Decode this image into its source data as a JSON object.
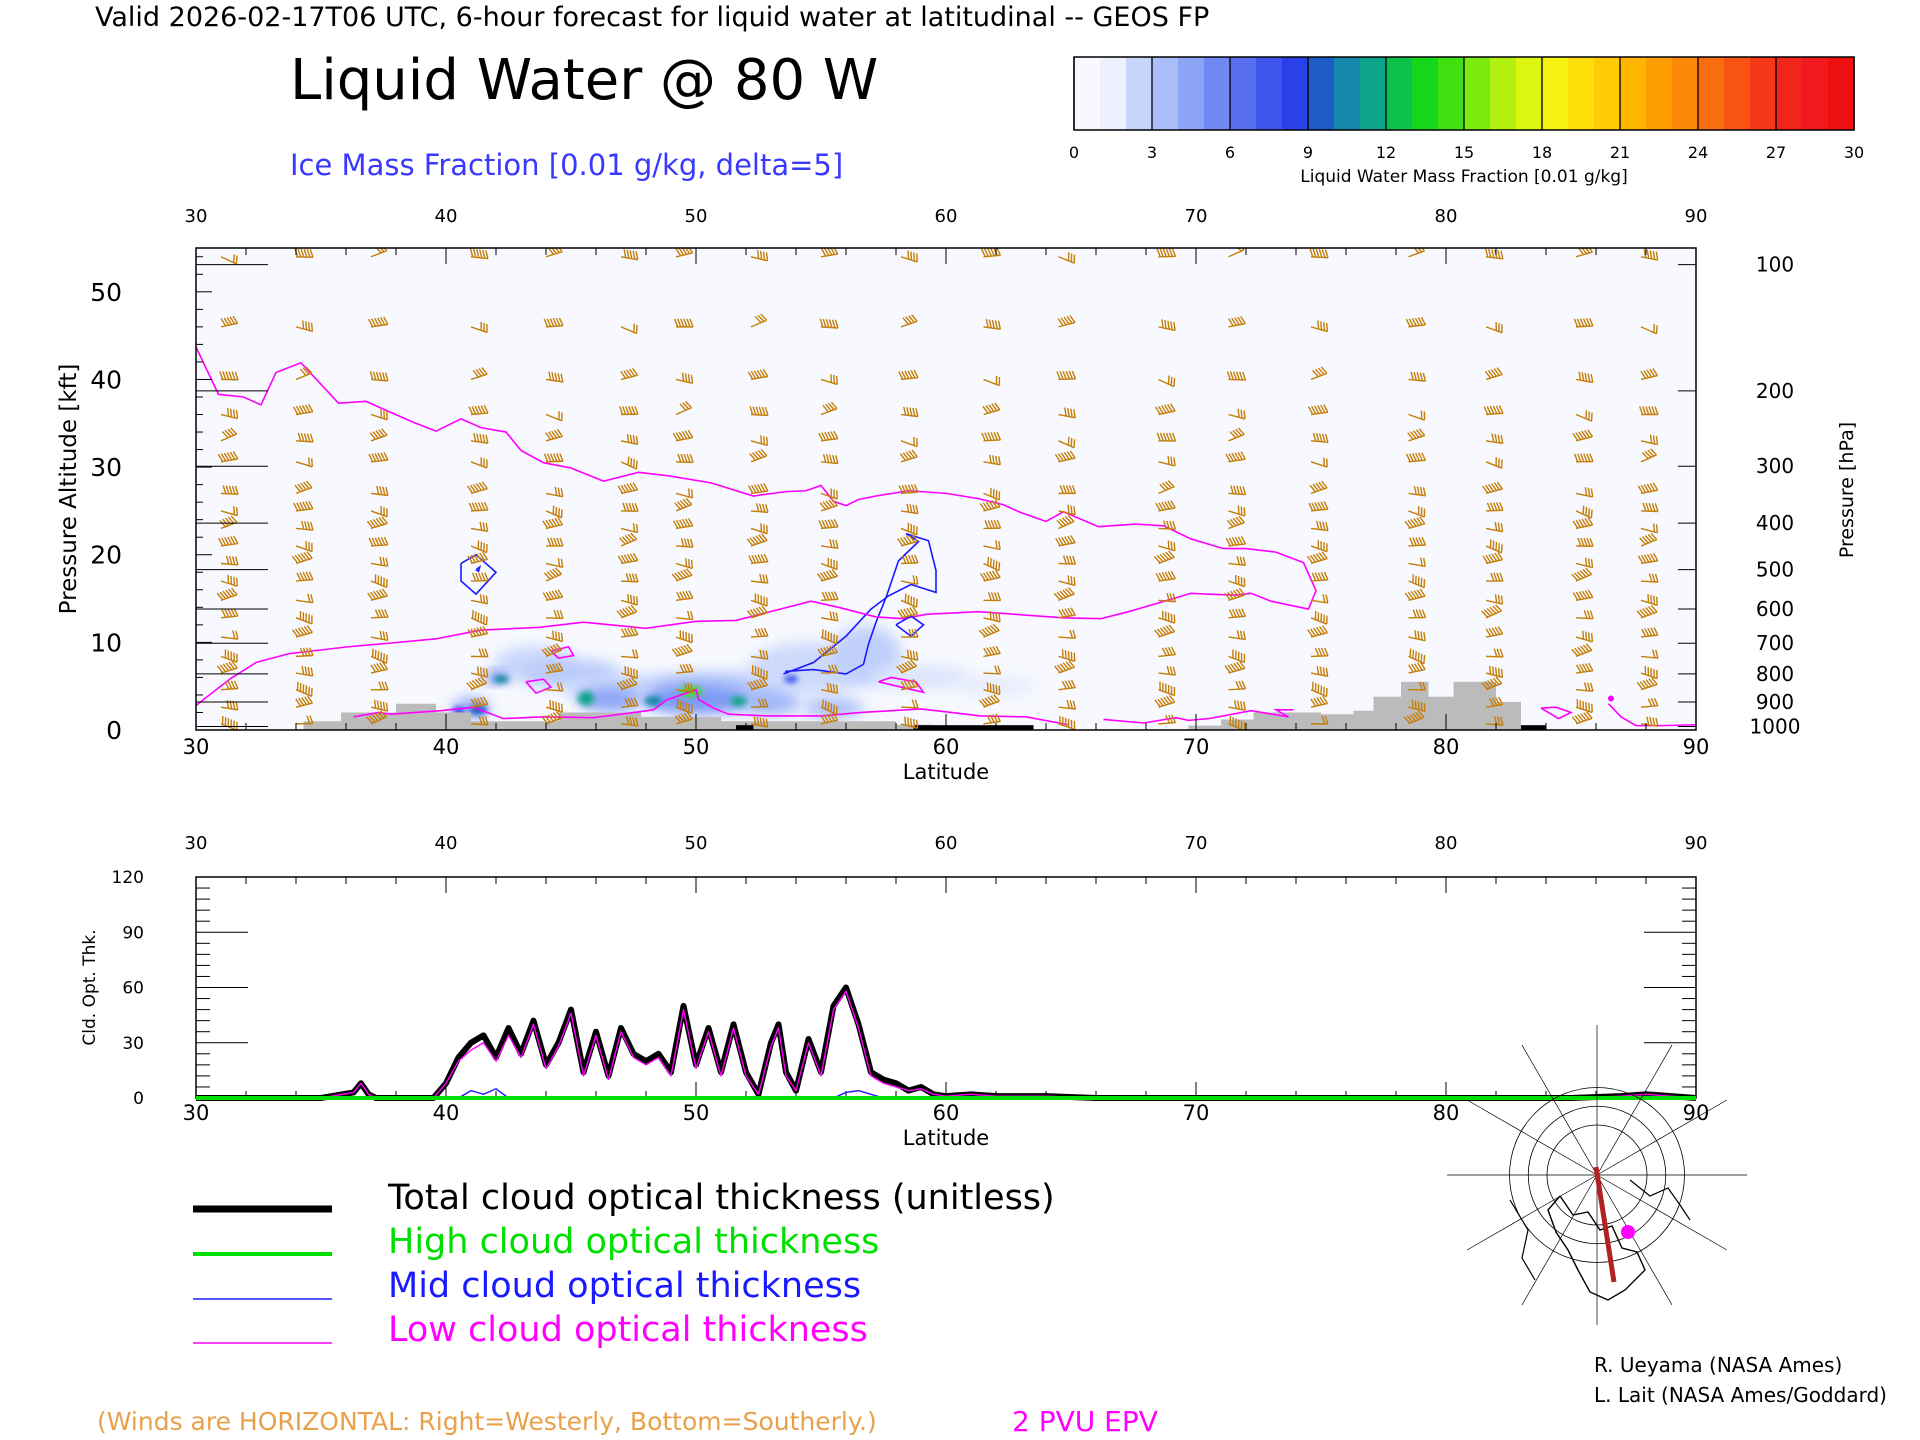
{
  "header": {
    "valid_line": "Valid 2026-02-17T06 UTC, 6-hour forecast for liquid water at latitudinal -- GEOS FP",
    "title": "Liquid Water @ 80 W",
    "subtitle": "Ice Mass Fraction [0.01 g/kg, delta=5]"
  },
  "colorbar": {
    "label": "Liquid Water Mass Fraction [0.01 g/kg]",
    "ticks": [
      "0",
      "3",
      "6",
      "9",
      "12",
      "15",
      "18",
      "21",
      "24",
      "27",
      "30"
    ],
    "colors": [
      "#f8f9fe",
      "#eef1fd",
      "#c8d6fb",
      "#a9bdf8",
      "#8ca4f5",
      "#7088f2",
      "#5a6ff0",
      "#3d55ec",
      "#2a41ea",
      "#1f5bc4",
      "#1587a8",
      "#0ca58a",
      "#0cc24b",
      "#14d61a",
      "#40e010",
      "#7bea0f",
      "#b3f010",
      "#ddf60f",
      "#f6f20f",
      "#fee10a",
      "#ffcb05",
      "#ffb400",
      "#fd9d02",
      "#fb8808",
      "#f86d0d",
      "#f75414",
      "#f43818",
      "#f2251c",
      "#f01a1e",
      "#ee1010"
    ],
    "dividers": [
      "0",
      "3",
      "6",
      "9",
      "12",
      "15",
      "18",
      "21",
      "24",
      "27",
      "30"
    ]
  },
  "colors": {
    "barb": "#c47e08",
    "epv": "#ff00ff",
    "ice": "#1a1aff",
    "terrain": "#bbbbbb",
    "total": "#000000",
    "high": "#00e000",
    "mid": "#1a1aff",
    "low": "#ff00ff",
    "subtitle": "#3838ff",
    "winds_note": "#e8a04a"
  },
  "chart_data": [
    {
      "type": "line",
      "title": "Liquid Water @ 80 W",
      "xlabel": "Latitude",
      "ylabel": "Pressure Altitude [kft]",
      "y2label": "Pressure [hPa]",
      "xlim": [
        30,
        90
      ],
      "ylim": [
        0,
        55
      ],
      "x_ticks": [
        "30",
        "40",
        "50",
        "60",
        "70",
        "80",
        "90"
      ],
      "y_ticks": [
        "0",
        "10",
        "20",
        "30",
        "40",
        "50"
      ],
      "pressure_ticks": [
        "100",
        "200",
        "300",
        "400",
        "500",
        "600",
        "700",
        "800",
        "900",
        "1000"
      ],
      "pressure_levels_kft": [
        53.1,
        38.7,
        30.1,
        23.6,
        18.3,
        13.8,
        9.9,
        6.4,
        3.2,
        0.4
      ],
      "grid": false,
      "series": [
        {
          "name": "2 PVU EPV",
          "x": [
            30,
            30.9,
            31.9,
            32.6,
            33.2,
            34.2,
            35.7,
            36.8,
            38.7,
            39.6,
            40.6,
            41.4,
            42.4,
            43.0,
            43.9,
            45.0,
            46.3,
            47.7,
            48.9,
            50.6,
            52.3,
            53.6,
            54.4,
            55.0,
            55.5,
            56.0,
            56.5,
            57.2,
            58.5,
            60.0,
            61.3,
            62.3,
            63.0,
            64.0,
            64.7,
            66.1,
            67.6,
            68.7,
            69.8,
            71.1,
            72.0,
            73.2,
            74.3,
            74.8,
            74.5,
            74.0,
            73.0,
            72.2,
            71.6,
            70.5,
            69.8,
            68.5,
            67.3,
            66.2,
            64.7,
            61.3,
            59.2,
            58.3,
            57.2,
            55.7,
            54.6,
            51.6,
            50.0,
            48.0,
            45.5,
            43.7,
            41.4,
            39.6,
            37.7,
            36.1,
            33.7,
            32.4,
            31.4,
            30.4,
            30.0
          ],
          "y": [
            43.7,
            38.3,
            38.0,
            37.1,
            40.8,
            41.9,
            37.3,
            37.5,
            35.1,
            34.1,
            35.5,
            34.5,
            34.0,
            31.9,
            30.5,
            29.9,
            28.4,
            29.4,
            29.0,
            28.2,
            26.7,
            27.2,
            27.3,
            27.9,
            26.1,
            25.6,
            26.3,
            26.7,
            27.3,
            27.0,
            26.4,
            25.7,
            24.8,
            23.8,
            24.9,
            23.2,
            23.5,
            23.3,
            21.8,
            20.7,
            20.7,
            20.3,
            19.1,
            15.9,
            13.8,
            14.1,
            14.7,
            15.6,
            15.4,
            15.5,
            15.6,
            14.5,
            13.5,
            12.7,
            12.8,
            13.5,
            13.2,
            12.7,
            12.9,
            14.0,
            14.7,
            12.5,
            12.4,
            11.6,
            12.3,
            11.7,
            11.4,
            10.4,
            9.9,
            9.5,
            8.7,
            7.7,
            5.9,
            3.7,
            2.8
          ]
        },
        {
          "name": "Ice Mass Fraction 5 contour",
          "x": [
            53.5,
            54.7,
            56.0,
            57.0,
            57.7,
            58.6,
            59.6,
            59.6,
            59.3,
            58.4,
            58.9,
            58.1,
            57.6,
            57.2,
            56.9,
            56.7,
            56.0,
            54.7,
            53.6,
            53.6
          ],
          "y": [
            6.4,
            7.7,
            10.7,
            13.8,
            15.3,
            16.6,
            15.7,
            18.2,
            21.6,
            22.4,
            21.5,
            19.3,
            15.1,
            12.3,
            9.8,
            7.5,
            6.4,
            6.9,
            6.7,
            6.4
          ]
        }
      ]
    },
    {
      "type": "line",
      "xlabel": "Latitude",
      "ylabel": "Cld. Opt. Thk.",
      "xlim": [
        30,
        90
      ],
      "ylim": [
        0,
        120
      ],
      "x_ticks": [
        "30",
        "40",
        "50",
        "60",
        "70",
        "80",
        "90"
      ],
      "y_ticks": [
        "0",
        "30",
        "60",
        "90",
        "120"
      ],
      "grid": false,
      "series": [
        {
          "name": "Total cloud optical thickness (unitless)",
          "x": [
            30,
            35,
            36.3,
            36.6,
            36.9,
            37.2,
            39.5,
            40.0,
            40.5,
            41.0,
            41.5,
            42.0,
            42.5,
            43.0,
            43.5,
            44.0,
            44.5,
            45.0,
            45.5,
            46.0,
            46.5,
            47.0,
            47.5,
            48.0,
            48.5,
            49.0,
            49.5,
            50.0,
            50.5,
            51.0,
            51.5,
            52.0,
            52.5,
            53.0,
            53.3,
            53.6,
            54.0,
            54.5,
            55.0,
            55.5,
            56.0,
            56.5,
            57.0,
            57.5,
            58.0,
            58.5,
            59.0,
            59.5,
            60.0,
            61.0,
            62.0,
            64.0,
            66.0,
            70.0,
            80.0,
            85.0,
            87.0,
            88.0,
            89.0,
            90.0
          ],
          "y": [
            0,
            0,
            3,
            8,
            2,
            0,
            0,
            8,
            22,
            30,
            34,
            22,
            38,
            24,
            42,
            18,
            30,
            48,
            14,
            36,
            12,
            38,
            24,
            20,
            24,
            14,
            50,
            18,
            38,
            14,
            40,
            14,
            2,
            30,
            40,
            14,
            4,
            32,
            14,
            50,
            60,
            40,
            14,
            10,
            8,
            4,
            6,
            2,
            1,
            2,
            1,
            1,
            0,
            0,
            0,
            0,
            1,
            2,
            1,
            0
          ]
        },
        {
          "name": "High cloud optical thickness",
          "x": [
            30,
            90
          ],
          "y": [
            0,
            0
          ]
        },
        {
          "name": "Mid cloud optical thickness",
          "x": [
            30,
            40.5,
            41.0,
            41.5,
            42.0,
            42.5,
            55.5,
            56.0,
            56.5,
            57.0,
            57.5,
            90
          ],
          "y": [
            0,
            0,
            4,
            2,
            5,
            0,
            0,
            3,
            4,
            2,
            0,
            0
          ]
        },
        {
          "name": "Low cloud optical thickness",
          "x": [
            30,
            35,
            36.3,
            36.6,
            36.9,
            37.2,
            39.5,
            40.0,
            40.5,
            41.0,
            41.5,
            42.0,
            42.5,
            43.0,
            43.5,
            44.0,
            44.5,
            45.0,
            45.5,
            46.0,
            46.5,
            47.0,
            47.5,
            48.0,
            48.5,
            49.0,
            49.5,
            50.0,
            50.5,
            51.0,
            51.5,
            52.0,
            52.5,
            53.0,
            53.3,
            53.6,
            54.0,
            54.5,
            55.0,
            55.5,
            56.0,
            56.5,
            57.0,
            57.5,
            58.0,
            58.5,
            59.0,
            59.5,
            60.0,
            61.0,
            62.0,
            64.0,
            66.0,
            70.0,
            80.0,
            85.0,
            87.0,
            88.0,
            89.0,
            90.0
          ],
          "y": [
            0,
            0,
            3,
            8,
            2,
            0,
            0,
            8,
            20,
            26,
            30,
            20,
            34,
            22,
            40,
            16,
            28,
            46,
            12,
            34,
            10,
            36,
            22,
            18,
            22,
            12,
            48,
            16,
            36,
            12,
            38,
            12,
            2,
            28,
            38,
            12,
            4,
            30,
            12,
            48,
            58,
            38,
            12,
            8,
            6,
            4,
            5,
            2,
            1,
            2,
            1,
            1,
            0,
            0,
            0,
            0,
            1,
            2,
            1,
            0
          ]
        }
      ]
    }
  ],
  "legend": {
    "total": "Total cloud optical thickness (unitless)",
    "high": "High cloud optical thickness",
    "mid": "Mid cloud optical thickness",
    "low": "Low cloud optical thickness"
  },
  "footer": {
    "winds_note": "(Winds are HORIZONTAL: Right=Westerly, Bottom=Southerly.)",
    "epv_label": "2 PVU EPV",
    "credit1": "R. Ueyama (NASA Ames)",
    "credit2": "L. Lait (NASA Ames/Goddard)"
  }
}
